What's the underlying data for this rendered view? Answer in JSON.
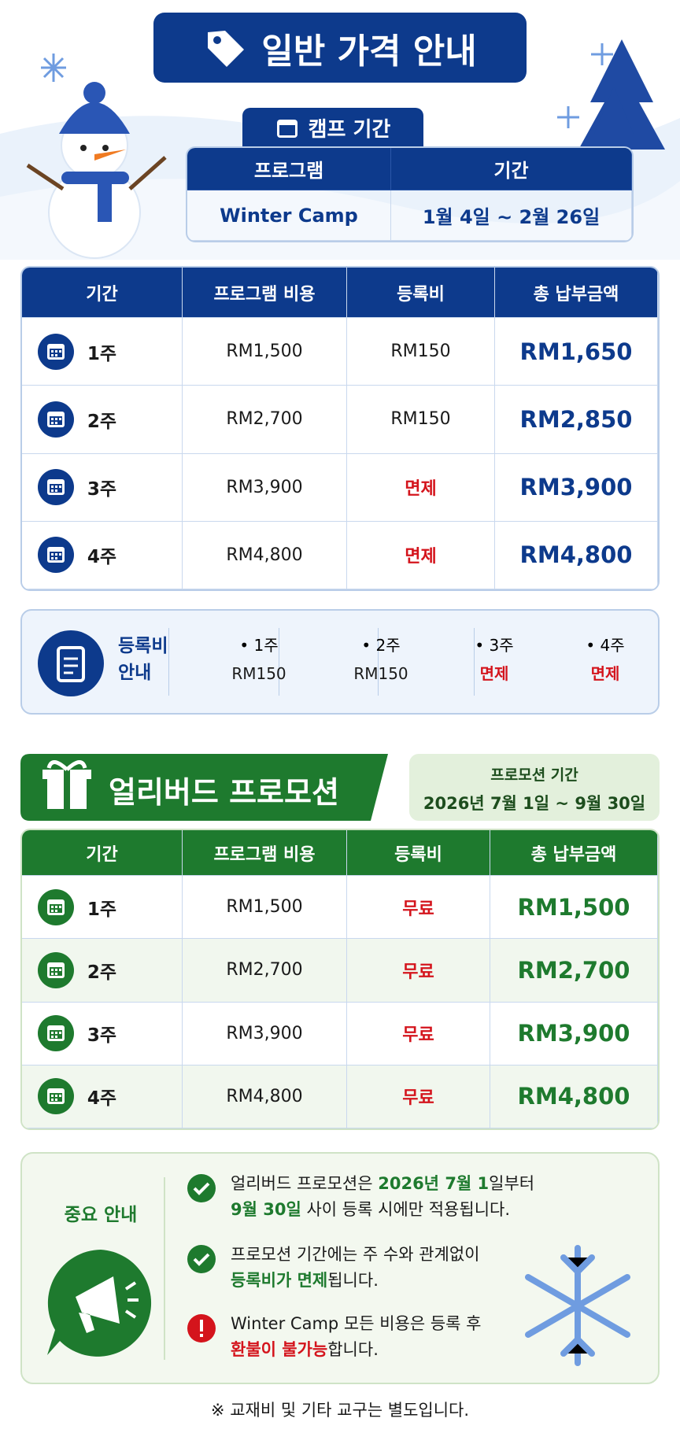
{
  "header": {
    "title": "일반 가격 안내"
  },
  "camp": {
    "label": "캠프 기간",
    "headers": [
      "프로그램",
      "기간"
    ],
    "row": [
      "Winter Camp",
      "1월 4일 ~ 2월 26일"
    ]
  },
  "regular": {
    "headers": [
      "기간",
      "프로그램 비용",
      "등록비",
      "총 납부금액"
    ],
    "rows": [
      [
        "1주",
        "RM1,500",
        "RM150",
        "RM1,650"
      ],
      [
        "2주",
        "RM2,700",
        "RM150",
        "RM2,850"
      ],
      [
        "3주",
        "RM3,900",
        "면제",
        "RM3,900"
      ],
      [
        "4주",
        "RM4,800",
        "면제",
        "RM4,800"
      ]
    ],
    "fee_colors": [
      "#1a1a1a",
      "#1a1a1a",
      "#d4141c",
      "#d4141c"
    ]
  },
  "fee_note": {
    "title": [
      "등록비",
      "안내"
    ],
    "items": [
      [
        "• 1주",
        "RM150"
      ],
      [
        "• 2주",
        "RM150"
      ],
      [
        "• 3주",
        "면제"
      ],
      [
        "• 4주",
        "면제"
      ]
    ],
    "fee_colors": [
      "#1a1a1a",
      "#1a1a1a",
      "#d4141c",
      "#d4141c"
    ]
  },
  "promo": {
    "title": "얼리버드 프로모션",
    "period_label": "프로모션 기간",
    "period": "2026년 7월 1일 ~ 9월 30일",
    "headers": [
      "기간",
      "프로그램 비용",
      "등록비",
      "총 납부금액"
    ],
    "rows": [
      [
        "1주",
        "RM1,500",
        "무료",
        "RM1,500"
      ],
      [
        "2주",
        "RM2,700",
        "무료",
        "RM2,700"
      ],
      [
        "3주",
        "RM3,900",
        "무료",
        "RM3,900"
      ],
      [
        "4주",
        "RM4,800",
        "무료",
        "RM4,800"
      ]
    ]
  },
  "notice": {
    "title": "중요 안내",
    "items": [
      {
        "icon": "check",
        "lines": [
          [
            {
              "text": "얼리버드 프로모션은 "
            },
            {
              "text": "2026년 7월 1",
              "style": "green"
            },
            {
              "text": "일부터"
            }
          ],
          [
            {
              "text": "9월 30일",
              "style": "green"
            },
            {
              "text": " 사이 등록 시에만 적용됩니다."
            }
          ]
        ]
      },
      {
        "icon": "check",
        "lines": [
          [
            {
              "text": "프로모션 기간에는 주 수와 관계없이"
            }
          ],
          [
            {
              "text": "등록비가 면제",
              "style": "green"
            },
            {
              "text": "됩니다."
            }
          ]
        ]
      },
      {
        "icon": "alert",
        "lines": [
          [
            {
              "text": "Winter Camp 모든 비용은 등록 후"
            }
          ],
          [
            {
              "text": "환불이 불가능",
              "style": "red"
            },
            {
              "text": "합니다."
            }
          ]
        ]
      }
    ]
  },
  "footer": "※ 교재비 및 기타 교구는 별도입니다."
}
